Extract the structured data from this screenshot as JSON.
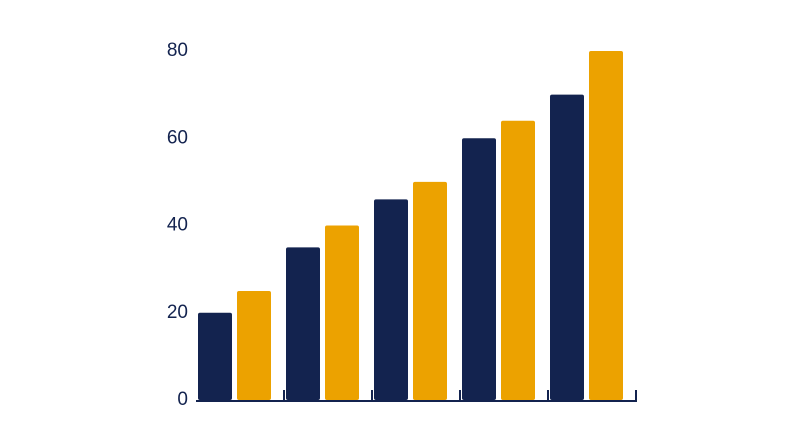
{
  "chart_data": {
    "type": "bar",
    "categories": [
      null,
      null,
      null,
      null,
      null
    ],
    "series": [
      {
        "color": "#13234f",
        "values": [
          20,
          35,
          46,
          60,
          70
        ]
      },
      {
        "color": "#eca200",
        "values": [
          25,
          40,
          50,
          64,
          80
        ]
      }
    ],
    "ylim": [
      0,
      80
    ],
    "yticks": [
      0,
      20,
      40,
      60,
      80
    ],
    "grid": false
  }
}
